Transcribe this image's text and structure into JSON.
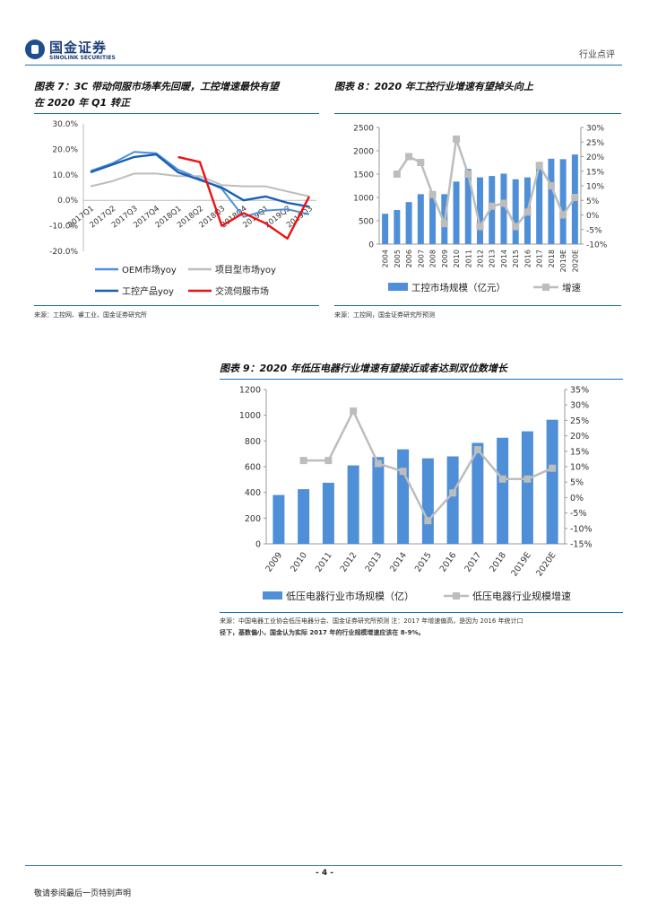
{
  "header": {
    "brand_cn": "国金证券",
    "brand_en": "SINOLINK SECURITIES",
    "doc_type": "行业点评"
  },
  "footer": {
    "page": "- 4 -",
    "note": "敬请参阅最后一页特别声明"
  },
  "fig7": {
    "title_line1": "图表 7：3C 带动伺服市场率先回暖，工控增速最快有望",
    "title_line2": "在 2020 年 Q1 转正",
    "source": "来源：工控网、睿工业、国金证券研究所"
  },
  "fig8": {
    "title": "图表 8：2020 年工控行业增速有望掉头向上",
    "source": "来源：工控网，国金证券研究所预测"
  },
  "fig9": {
    "title": "图表 9：2020 年低压电器行业增速有望接近或者达到双位数增长",
    "source_line1": "来源：中国电器工业协会低压电器分会、国金证券研究所预测  注：2017 年增速偏高，是因为 2016 年统计口",
    "source_line2": "径下，基数偏小，国金认为实际 2017 年的行业规模增速应该在 8-9%。"
  },
  "chart_data": [
    {
      "type": "line",
      "categories": [
        "2017Q1",
        "2017Q2",
        "2017Q3",
        "2017Q4",
        "2018Q1",
        "2018Q2",
        "2018Q3",
        "2018Q4",
        "2019Q1",
        "2019Q2",
        "2019Q3"
      ],
      "y_ticks": [
        "30.0%",
        "20.0%",
        "10.0%",
        "0.0%",
        "-10.0%",
        "-20.0%"
      ],
      "ylim": [
        -20,
        30
      ],
      "series": [
        {
          "name": "OEM市场yoy",
          "color": "#4f8fd8",
          "values": [
            11.5,
            14.5,
            19.0,
            18.5,
            12.0,
            8.5,
            4.5,
            -6.5,
            -4.0,
            -3.5,
            -5.5
          ]
        },
        {
          "name": "项目型市场yoy",
          "color": "#bdbdbd",
          "values": [
            5.5,
            7.5,
            10.5,
            10.5,
            9.5,
            9.5,
            6.0,
            5.5,
            5.5,
            3.5,
            1.5
          ]
        },
        {
          "name": "工控产品yoy",
          "color": "#1a5fb4",
          "values": [
            11.0,
            14.0,
            17.0,
            18.0,
            11.0,
            8.0,
            5.0,
            0.0,
            1.5,
            -1.0,
            -2.5
          ]
        },
        {
          "name": "交流伺服市场",
          "color": "#ee1111",
          "values": [
            null,
            null,
            null,
            null,
            17.0,
            15.0,
            -10.0,
            -5.0,
            -9.0,
            -15.0,
            1.5
          ]
        }
      ],
      "legend": [
        "OEM市场yoy",
        "项目型市场yoy",
        "工控产品yoy",
        "交流伺服市场"
      ]
    },
    {
      "type": "bar",
      "categories": [
        "2004",
        "2005",
        "2006",
        "2007",
        "2008",
        "2009",
        "2010",
        "2011",
        "2012",
        "2013",
        "2014",
        "2015",
        "2016",
        "2017",
        "2018",
        "2019E",
        "2020E"
      ],
      "y_left_ticks": [
        "2500",
        "2000",
        "1500",
        "1000",
        "500",
        "0"
      ],
      "y_right_ticks": [
        "30%",
        "25%",
        "20%",
        "15%",
        "10%",
        "5%",
        "0%",
        "-5%",
        "-10%"
      ],
      "ylim_left": [
        0,
        2500
      ],
      "ylim_right": [
        -10,
        30
      ],
      "series": [
        {
          "name": "工控市场规模（亿元）",
          "kind": "bar",
          "color": "#4f8fd8",
          "values": [
            650,
            730,
            900,
            1070,
            1060,
            1070,
            1340,
            1610,
            1430,
            1460,
            1510,
            1390,
            1430,
            1670,
            1830,
            1820,
            1920
          ]
        },
        {
          "name": "增速",
          "kind": "line",
          "color": "#bdbdbd",
          "values": [
            null,
            14,
            20,
            18,
            7,
            -3,
            26,
            14,
            -4,
            3,
            4,
            -4,
            1,
            17,
            10,
            0,
            6
          ]
        }
      ],
      "legend": [
        "工控市场规模（亿元）",
        "增速"
      ]
    },
    {
      "type": "bar",
      "categories": [
        "2009",
        "2010",
        "2011",
        "2012",
        "2013",
        "2014",
        "2015",
        "2016",
        "2017",
        "2018",
        "2019E",
        "2020E"
      ],
      "y_left_ticks": [
        "1200",
        "1000",
        "800",
        "600",
        "400",
        "200",
        "0"
      ],
      "y_right_ticks": [
        "35%",
        "30%",
        "25%",
        "20%",
        "15%",
        "10%",
        "5%",
        "0%",
        "-5%",
        "-10%",
        "-15%"
      ],
      "ylim_left": [
        0,
        1200
      ],
      "ylim_right": [
        -15,
        35
      ],
      "series": [
        {
          "name": "低压电器行业市场规模（亿）",
          "kind": "bar",
          "color": "#4f8fd8",
          "values": [
            380,
            425,
            475,
            610,
            675,
            735,
            665,
            680,
            785,
            825,
            875,
            965
          ]
        },
        {
          "name": "低压电器行业规模增速",
          "kind": "line",
          "color": "#bdbdbd",
          "values": [
            null,
            12,
            12,
            28,
            11,
            8.5,
            -7.5,
            1.5,
            15.5,
            6,
            6,
            9.5
          ]
        }
      ],
      "legend": [
        "低压电器行业市场规模（亿）",
        "低压电器行业规模增速"
      ]
    }
  ]
}
